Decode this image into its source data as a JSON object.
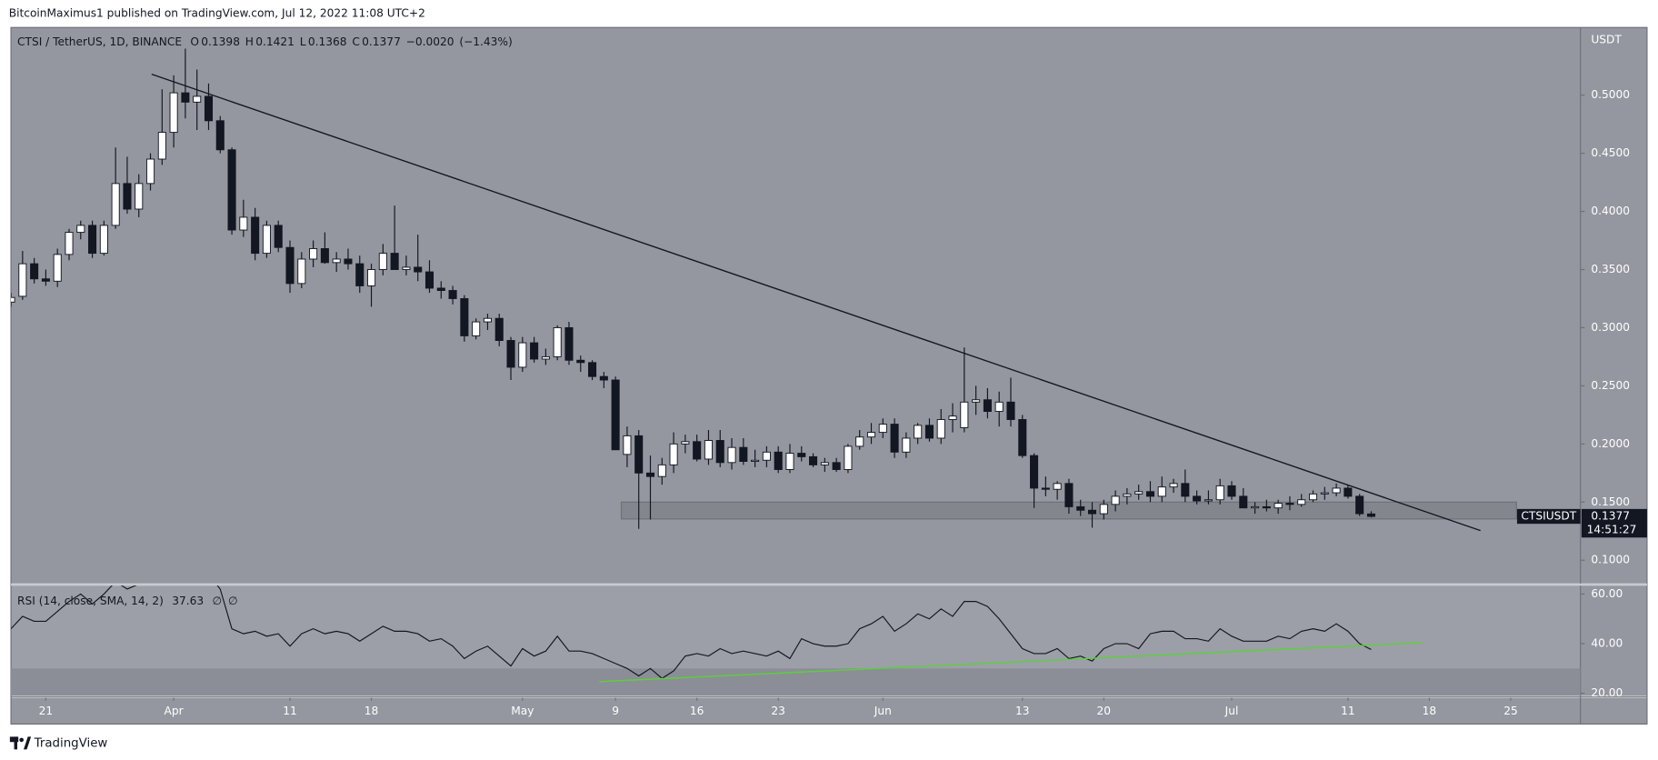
{
  "header": {
    "publisher": "BitcoinMaximus1 published on TradingView.com, Jul 12, 2022 11:08 UTC+2"
  },
  "footer": {
    "brand": "TradingView"
  },
  "chart_data": {
    "type": "candlestick",
    "symbol_line": "CTSI / TetherUS, 1D, BINANCE",
    "ohlc_letters": [
      "O",
      "H",
      "L",
      "C"
    ],
    "change": {
      "value": -0.002,
      "label": "−0.0020"
    },
    "change_pct": {
      "value": -1.43,
      "label": "(−1.43%)"
    },
    "currency": "USDT",
    "symbol": "CTSIUSDT",
    "countdown": "14:51:27",
    "candles": [
      [
        0.322,
        0.33,
        0.318,
        0.326
      ],
      [
        0.327,
        0.366,
        0.324,
        0.355
      ],
      [
        0.355,
        0.36,
        0.338,
        0.342
      ],
      [
        0.342,
        0.35,
        0.336,
        0.34
      ],
      [
        0.34,
        0.368,
        0.335,
        0.363
      ],
      [
        0.363,
        0.385,
        0.358,
        0.382
      ],
      [
        0.382,
        0.392,
        0.376,
        0.388
      ],
      [
        0.388,
        0.392,
        0.36,
        0.364
      ],
      [
        0.364,
        0.392,
        0.362,
        0.388
      ],
      [
        0.388,
        0.455,
        0.385,
        0.424
      ],
      [
        0.424,
        0.447,
        0.398,
        0.402
      ],
      [
        0.402,
        0.432,
        0.395,
        0.424
      ],
      [
        0.424,
        0.45,
        0.418,
        0.445
      ],
      [
        0.445,
        0.505,
        0.44,
        0.468
      ],
      [
        0.468,
        0.517,
        0.455,
        0.502
      ],
      [
        0.502,
        0.54,
        0.48,
        0.494
      ],
      [
        0.494,
        0.522,
        0.47,
        0.499
      ],
      [
        0.499,
        0.51,
        0.47,
        0.478
      ],
      [
        0.478,
        0.482,
        0.45,
        0.453
      ],
      [
        0.453,
        0.455,
        0.38,
        0.384
      ],
      [
        0.384,
        0.41,
        0.378,
        0.395
      ],
      [
        0.395,
        0.403,
        0.358,
        0.364
      ],
      [
        0.364,
        0.392,
        0.36,
        0.388
      ],
      [
        0.388,
        0.392,
        0.365,
        0.369
      ],
      [
        0.369,
        0.375,
        0.33,
        0.338
      ],
      [
        0.338,
        0.365,
        0.334,
        0.359
      ],
      [
        0.359,
        0.375,
        0.352,
        0.368
      ],
      [
        0.368,
        0.382,
        0.355,
        0.356
      ],
      [
        0.356,
        0.365,
        0.348,
        0.359
      ],
      [
        0.359,
        0.368,
        0.35,
        0.355
      ],
      [
        0.355,
        0.362,
        0.33,
        0.336
      ],
      [
        0.336,
        0.355,
        0.318,
        0.35
      ],
      [
        0.35,
        0.372,
        0.345,
        0.364
      ],
      [
        0.364,
        0.405,
        0.35,
        0.35
      ],
      [
        0.35,
        0.362,
        0.345,
        0.352
      ],
      [
        0.352,
        0.38,
        0.34,
        0.348
      ],
      [
        0.348,
        0.358,
        0.33,
        0.334
      ],
      [
        0.334,
        0.34,
        0.325,
        0.332
      ],
      [
        0.332,
        0.336,
        0.32,
        0.325
      ],
      [
        0.325,
        0.328,
        0.288,
        0.293
      ],
      [
        0.293,
        0.308,
        0.29,
        0.305
      ],
      [
        0.305,
        0.312,
        0.298,
        0.308
      ],
      [
        0.308,
        0.312,
        0.284,
        0.289
      ],
      [
        0.289,
        0.292,
        0.255,
        0.266
      ],
      [
        0.266,
        0.292,
        0.262,
        0.287
      ],
      [
        0.287,
        0.292,
        0.27,
        0.273
      ],
      [
        0.273,
        0.282,
        0.268,
        0.275
      ],
      [
        0.275,
        0.302,
        0.272,
        0.3
      ],
      [
        0.3,
        0.305,
        0.268,
        0.272
      ],
      [
        0.272,
        0.276,
        0.262,
        0.27
      ],
      [
        0.27,
        0.272,
        0.255,
        0.258
      ],
      [
        0.258,
        0.262,
        0.248,
        0.255
      ],
      [
        0.255,
        0.258,
        0.195,
        0.195
      ],
      [
        0.191,
        0.215,
        0.18,
        0.207
      ],
      [
        0.207,
        0.212,
        0.127,
        0.175
      ],
      [
        0.175,
        0.19,
        0.135,
        0.172
      ],
      [
        0.172,
        0.188,
        0.165,
        0.182
      ],
      [
        0.182,
        0.21,
        0.175,
        0.2
      ],
      [
        0.2,
        0.208,
        0.192,
        0.202
      ],
      [
        0.202,
        0.208,
        0.185,
        0.187
      ],
      [
        0.187,
        0.212,
        0.182,
        0.203
      ],
      [
        0.203,
        0.212,
        0.18,
        0.184
      ],
      [
        0.184,
        0.205,
        0.178,
        0.197
      ],
      [
        0.197,
        0.205,
        0.182,
        0.185
      ],
      [
        0.185,
        0.195,
        0.18,
        0.186
      ],
      [
        0.186,
        0.198,
        0.18,
        0.193
      ],
      [
        0.193,
        0.198,
        0.175,
        0.178
      ],
      [
        0.178,
        0.2,
        0.175,
        0.192
      ],
      [
        0.192,
        0.198,
        0.185,
        0.189
      ],
      [
        0.189,
        0.192,
        0.18,
        0.182
      ],
      [
        0.182,
        0.188,
        0.176,
        0.184
      ],
      [
        0.184,
        0.188,
        0.176,
        0.178
      ],
      [
        0.178,
        0.2,
        0.175,
        0.198
      ],
      [
        0.198,
        0.212,
        0.195,
        0.206
      ],
      [
        0.206,
        0.218,
        0.2,
        0.21
      ],
      [
        0.21,
        0.222,
        0.205,
        0.217
      ],
      [
        0.217,
        0.222,
        0.188,
        0.193
      ],
      [
        0.193,
        0.21,
        0.188,
        0.205
      ],
      [
        0.205,
        0.218,
        0.2,
        0.216
      ],
      [
        0.216,
        0.222,
        0.202,
        0.205
      ],
      [
        0.205,
        0.23,
        0.2,
        0.221
      ],
      [
        0.221,
        0.235,
        0.21,
        0.224
      ],
      [
        0.214,
        0.283,
        0.21,
        0.236
      ],
      [
        0.236,
        0.25,
        0.225,
        0.238
      ],
      [
        0.238,
        0.248,
        0.222,
        0.228
      ],
      [
        0.228,
        0.245,
        0.215,
        0.236
      ],
      [
        0.236,
        0.257,
        0.215,
        0.221
      ],
      [
        0.221,
        0.225,
        0.188,
        0.19
      ],
      [
        0.19,
        0.192,
        0.145,
        0.162
      ],
      [
        0.162,
        0.172,
        0.155,
        0.161
      ],
      [
        0.161,
        0.168,
        0.152,
        0.166
      ],
      [
        0.166,
        0.17,
        0.14,
        0.146
      ],
      [
        0.146,
        0.152,
        0.138,
        0.143
      ],
      [
        0.143,
        0.15,
        0.128,
        0.14
      ],
      [
        0.14,
        0.152,
        0.135,
        0.148
      ],
      [
        0.148,
        0.16,
        0.142,
        0.155
      ],
      [
        0.155,
        0.162,
        0.148,
        0.157
      ],
      [
        0.157,
        0.165,
        0.152,
        0.159
      ],
      [
        0.159,
        0.168,
        0.15,
        0.155
      ],
      [
        0.155,
        0.172,
        0.15,
        0.163
      ],
      [
        0.163,
        0.17,
        0.158,
        0.166
      ],
      [
        0.166,
        0.178,
        0.15,
        0.155
      ],
      [
        0.155,
        0.16,
        0.148,
        0.151
      ],
      [
        0.151,
        0.16,
        0.148,
        0.152
      ],
      [
        0.152,
        0.17,
        0.148,
        0.164
      ],
      [
        0.164,
        0.168,
        0.152,
        0.155
      ],
      [
        0.155,
        0.162,
        0.145,
        0.145
      ],
      [
        0.145,
        0.15,
        0.14,
        0.146
      ],
      [
        0.146,
        0.152,
        0.142,
        0.145
      ],
      [
        0.145,
        0.152,
        0.14,
        0.149
      ],
      [
        0.149,
        0.155,
        0.143,
        0.148
      ],
      [
        0.148,
        0.157,
        0.146,
        0.152
      ],
      [
        0.152,
        0.16,
        0.15,
        0.157
      ],
      [
        0.157,
        0.163,
        0.152,
        0.158
      ],
      [
        0.158,
        0.166,
        0.155,
        0.162
      ],
      [
        0.162,
        0.165,
        0.153,
        0.155
      ],
      [
        0.155,
        0.157,
        0.138,
        0.14
      ],
      [
        0.1398,
        0.1421,
        0.1368,
        0.1377
      ]
    ],
    "up_color": "#ffffff",
    "down_color": "#131722",
    "xlim": [
      0,
      135
    ],
    "xticks": [
      {
        "value": 3,
        "label": "21"
      },
      {
        "value": 14,
        "label": "Apr"
      },
      {
        "value": 24,
        "label": "11"
      },
      {
        "value": 31,
        "label": "18"
      },
      {
        "value": 44,
        "label": "May"
      },
      {
        "value": 52,
        "label": "9"
      },
      {
        "value": 59,
        "label": "16"
      },
      {
        "value": 66,
        "label": "23"
      },
      {
        "value": 75,
        "label": "Jun"
      },
      {
        "value": 87,
        "label": "13"
      },
      {
        "value": 94,
        "label": "20"
      },
      {
        "value": 105,
        "label": "Jul"
      },
      {
        "value": 115,
        "label": "11"
      },
      {
        "value": 122,
        "label": "18"
      },
      {
        "value": 129,
        "label": "25"
      }
    ],
    "ylim": [
      0.08,
      0.5582
    ],
    "yticks": [
      {
        "value": 0.1,
        "label": "0.1000"
      },
      {
        "value": 0.15,
        "label": "0.1500"
      },
      {
        "value": 0.2,
        "label": "0.2000"
      },
      {
        "value": 0.25,
        "label": "0.2500"
      },
      {
        "value": 0.3,
        "label": "0.3000"
      },
      {
        "value": 0.35,
        "label": "0.3500"
      },
      {
        "value": 0.4,
        "label": "0.4000"
      },
      {
        "value": 0.45,
        "label": "0.4500"
      },
      {
        "value": 0.5,
        "label": "0.5000"
      }
    ],
    "trendline": {
      "x": [
        12.1,
        126.4
      ],
      "y": [
        0.518,
        0.1255
      ],
      "color": "#131722"
    },
    "support_zone": {
      "x": [
        52.5,
        129.5
      ],
      "y": [
        0.1355,
        0.15
      ],
      "color": "#7f828a"
    },
    "rsi": {
      "label": "RSI (14, close, SMA, 14, 2)",
      "value_label": "37.63",
      "extra": [
        "∅",
        "∅"
      ],
      "values": [
        46,
        51,
        49,
        49,
        53,
        57,
        60,
        56,
        60,
        65,
        62,
        64,
        67,
        72,
        74,
        73,
        73,
        68,
        62,
        46,
        44,
        45,
        43,
        44,
        39,
        44,
        46,
        44,
        45,
        44,
        41,
        44,
        47,
        45,
        45,
        44,
        41,
        42,
        39,
        34,
        37,
        39,
        35,
        31,
        38,
        35,
        37,
        43,
        37,
        37,
        36,
        34,
        32,
        30,
        27,
        30,
        26,
        29,
        35,
        36,
        35,
        38,
        36,
        37,
        36,
        35,
        37,
        34,
        42,
        40,
        39,
        39,
        40,
        46,
        48,
        51,
        45,
        48,
        52,
        50,
        54,
        51,
        57,
        57,
        55,
        50,
        44,
        38,
        36,
        36,
        38,
        34,
        35,
        33,
        38,
        40,
        40,
        38,
        44,
        45,
        45,
        42,
        42,
        41,
        46,
        43,
        41,
        41,
        41,
        43,
        42,
        45,
        46,
        45,
        48,
        45,
        40,
        37.63
      ],
      "color": "#131722",
      "ylim": [
        19.1,
        63.4
      ],
      "yticks": [
        {
          "value": 20,
          "label": "20.00"
        },
        {
          "value": 40,
          "label": "40.00"
        },
        {
          "value": 60,
          "label": "60.00"
        }
      ],
      "band": [
        30,
        70
      ],
      "trendline": {
        "x": [
          50.6,
          121.4
        ],
        "y": [
          24.7,
          40.4
        ],
        "color": "#5ad13a"
      }
    }
  }
}
